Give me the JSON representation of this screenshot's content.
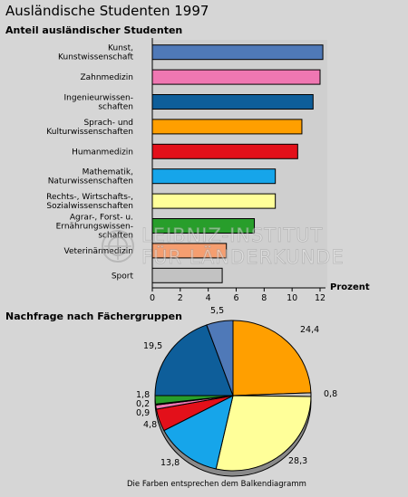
{
  "title": "Ausländische Studenten 1997",
  "bar_section_title": "Anteil ausländischer Studenten",
  "pie_section_title": "Nachfrage nach Fächergruppen",
  "footnote": "Die Farben entsprechen dem Balkendiagramm",
  "watermark": {
    "line1": "LEIBNIZ-INSTITUT",
    "line2": "FÜR LÄNDERKUNDE"
  },
  "chart_data": [
    {
      "type": "bar",
      "orientation": "horizontal",
      "title": "Anteil ausländischer Studenten",
      "xlabel": "Prozent",
      "xlim": [
        0,
        12
      ],
      "xticks": [
        "0",
        "2",
        "4",
        "6",
        "8",
        "10",
        "12"
      ],
      "categories": [
        [
          "Kunst,",
          "Kunstwissenschaft"
        ],
        [
          "Zahnmedizin"
        ],
        [
          "Ingenieurwissen-",
          "schaften"
        ],
        [
          "Sprach- und",
          "Kulturwissenschaften"
        ],
        [
          "Humanmedizin"
        ],
        [
          "Mathematik,",
          "Naturwissenschaften"
        ],
        [
          "Rechts-, Wirtschafts-,",
          "Sozialwissenschaften"
        ],
        [
          "Agrar-, Forst- u.",
          "Ernährungswissen-",
          "schaften"
        ],
        [
          "Veterinärmedizin"
        ],
        [
          "Sport"
        ]
      ],
      "values": [
        12.2,
        12.0,
        11.5,
        10.7,
        10.4,
        8.8,
        8.8,
        7.3,
        5.3,
        5.0
      ],
      "colors": [
        "#4f79b8",
        "#ef77b2",
        "#0e5e9a",
        "#ff9f00",
        "#e3101a",
        "#16a5ea",
        "#ffff99",
        "#289e2b",
        "#f59e70",
        "#c2c2c2"
      ]
    },
    {
      "type": "pie",
      "title": "Nachfrage nach Fächergruppen",
      "slices": [
        {
          "label": "24,4",
          "value": 24.4,
          "color": "#ff9f00"
        },
        {
          "label": "0,8",
          "value": 0.8,
          "color": "#c2c2c2"
        },
        {
          "label": "28,3",
          "value": 28.3,
          "color": "#ffff99"
        },
        {
          "label": "13,8",
          "value": 13.8,
          "color": "#16a5ea"
        },
        {
          "label": "4,8",
          "value": 4.8,
          "color": "#e3101a"
        },
        {
          "label": "0,9",
          "value": 0.9,
          "color": "#ef77b2"
        },
        {
          "label": "0,2",
          "value": 0.2,
          "color": "#f59e70"
        },
        {
          "label": "1,8",
          "value": 1.8,
          "color": "#289e2b"
        },
        {
          "label": "19,5",
          "value": 19.5,
          "color": "#0e5e9a"
        },
        {
          "label": "5,5",
          "value": 5.5,
          "color": "#4f79b8"
        }
      ]
    }
  ]
}
